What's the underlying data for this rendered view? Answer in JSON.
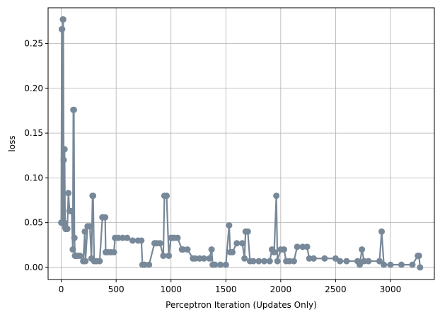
{
  "chart_data": {
    "type": "line",
    "title": "",
    "xlabel": "Perceptron Iteration (Updates Only)",
    "ylabel": "loss",
    "xlim": [
      -120,
      3400
    ],
    "ylim": [
      -0.0135,
      0.29
    ],
    "xticks": [
      0,
      500,
      1000,
      1500,
      2000,
      2500,
      3000
    ],
    "yticks": [
      0.0,
      0.05,
      0.1,
      0.15,
      0.2,
      0.25
    ],
    "ytick_labels": [
      "0.00",
      "0.05",
      "0.10",
      "0.15",
      "0.20",
      "0.25"
    ],
    "grid": true,
    "series": [
      {
        "color": "#778899",
        "marker": "circle",
        "x": [
          0,
          5,
          8,
          12,
          15,
          18,
          22,
          26,
          30,
          35,
          40,
          45,
          55,
          65,
          75,
          85,
          95,
          105,
          110,
          115,
          120,
          125,
          130,
          140,
          150,
          170,
          200,
          215,
          220,
          240,
          260,
          275,
          285,
          290,
          300,
          320,
          350,
          375,
          380,
          400,
          405,
          420,
          450,
          480,
          490,
          520,
          560,
          600,
          650,
          700,
          730,
          740,
          760,
          800,
          850,
          870,
          900,
          930,
          940,
          960,
          980,
          1000,
          1010,
          1030,
          1060,
          1100,
          1110,
          1150,
          1200,
          1220,
          1260,
          1300,
          1350,
          1370,
          1380,
          1400,
          1450,
          1500,
          1530,
          1540,
          1560,
          1600,
          1650,
          1670,
          1680,
          1700,
          1720,
          1750,
          1800,
          1850,
          1900,
          1920,
          1940,
          1960,
          1970,
          2000,
          2030,
          2050,
          2080,
          2120,
          2150,
          2200,
          2240,
          2260,
          2300,
          2400,
          2500,
          2540,
          2600,
          2700,
          2720,
          2740,
          2760,
          2800,
          2900,
          2920,
          2940,
          3000,
          3100,
          3200,
          3250,
          3260,
          3270
        ],
        "y": [
          0.05,
          0.266,
          0.266,
          0.05,
          0.277,
          0.277,
          0.12,
          0.05,
          0.132,
          0.045,
          0.043,
          0.043,
          0.043,
          0.083,
          0.063,
          0.063,
          0.063,
          0.02,
          0.176,
          0.176,
          0.033,
          0.013,
          0.013,
          0.013,
          0.013,
          0.013,
          0.007,
          0.04,
          0.007,
          0.046,
          0.046,
          0.01,
          0.08,
          0.08,
          0.007,
          0.007,
          0.007,
          0.056,
          0.056,
          0.056,
          0.017,
          0.017,
          0.017,
          0.017,
          0.033,
          0.033,
          0.033,
          0.033,
          0.03,
          0.03,
          0.03,
          0.003,
          0.003,
          0.003,
          0.027,
          0.027,
          0.027,
          0.013,
          0.08,
          0.08,
          0.013,
          0.033,
          0.033,
          0.033,
          0.033,
          0.02,
          0.02,
          0.02,
          0.01,
          0.01,
          0.01,
          0.01,
          0.01,
          0.02,
          0.003,
          0.003,
          0.003,
          0.003,
          0.047,
          0.017,
          0.017,
          0.027,
          0.027,
          0.01,
          0.04,
          0.04,
          0.007,
          0.007,
          0.007,
          0.007,
          0.007,
          0.02,
          0.017,
          0.08,
          0.007,
          0.02,
          0.02,
          0.007,
          0.007,
          0.007,
          0.023,
          0.023,
          0.023,
          0.01,
          0.01,
          0.01,
          0.01,
          0.007,
          0.007,
          0.007,
          0.003,
          0.02,
          0.007,
          0.007,
          0.007,
          0.04,
          0.003,
          0.003,
          0.003,
          0.003,
          0.013,
          0.013,
          0.0
        ]
      }
    ]
  }
}
